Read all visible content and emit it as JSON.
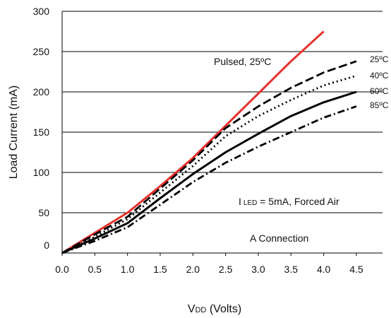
{
  "chart_data": {
    "type": "line",
    "xlabel": "VDD (Volts)",
    "xlabel_main": "V",
    "xlabel_sub": "DD",
    "xlabel_rest": " (Volts)",
    "ylabel": "Load Current (mA)",
    "xlim": [
      0,
      4.9
    ],
    "ylim": [
      0,
      300
    ],
    "x_ticks": [
      "0.0",
      "0.5",
      "1.0",
      "1.5",
      "2.0",
      "2.5",
      "3.0",
      "3.5",
      "4.0",
      "4.5"
    ],
    "y_ticks": [
      "0",
      "50",
      "100",
      "150",
      "200",
      "250",
      "300"
    ],
    "grid": "horizontal",
    "series": [
      {
        "name": "Pulsed, 25ºC",
        "color": "#e8302a",
        "style": "solid",
        "x": [
          0,
          0.5,
          1.0,
          1.5,
          2.0,
          2.5,
          3.0,
          3.5,
          4.0
        ],
        "y": [
          0,
          25,
          50,
          83,
          118,
          158,
          198,
          238,
          275
        ]
      },
      {
        "name": "25ºC",
        "color": "#000000",
        "style": "dashed",
        "x": [
          0,
          0.5,
          1.0,
          1.5,
          2.0,
          2.5,
          3.0,
          3.5,
          4.0,
          4.5
        ],
        "y": [
          0,
          23,
          45,
          80,
          115,
          155,
          182,
          205,
          224,
          238
        ]
      },
      {
        "name": "40ºC",
        "color": "#000000",
        "style": "dotted",
        "x": [
          0,
          0.5,
          1.0,
          1.5,
          2.0,
          2.5,
          3.0,
          3.5,
          4.0,
          4.5
        ],
        "y": [
          0,
          20,
          42,
          75,
          108,
          145,
          170,
          190,
          208,
          220
        ]
      },
      {
        "name": "60ºC",
        "color": "#000000",
        "style": "solid",
        "x": [
          0,
          0.5,
          1.0,
          1.5,
          2.0,
          2.5,
          3.0,
          3.5,
          4.0,
          4.5
        ],
        "y": [
          0,
          18,
          37,
          68,
          98,
          125,
          148,
          170,
          187,
          200
        ]
      },
      {
        "name": "85ºC",
        "color": "#000000",
        "style": "dashdot",
        "x": [
          0,
          0.5,
          1.0,
          1.5,
          2.0,
          2.5,
          3.0,
          3.5,
          4.0,
          4.5
        ],
        "y": [
          0,
          15,
          32,
          60,
          88,
          112,
          132,
          150,
          168,
          182
        ]
      }
    ],
    "annotations": {
      "pulsed": "Pulsed, 25ºC",
      "t25": "25ºC",
      "t40": "40ºC",
      "t60": "60ºC",
      "t85": "85ºC",
      "iled_prefix": "I",
      "iled_sub": "LED",
      "iled_rest": " = 5mA, Forced Air",
      "connection": "A Connection"
    }
  }
}
